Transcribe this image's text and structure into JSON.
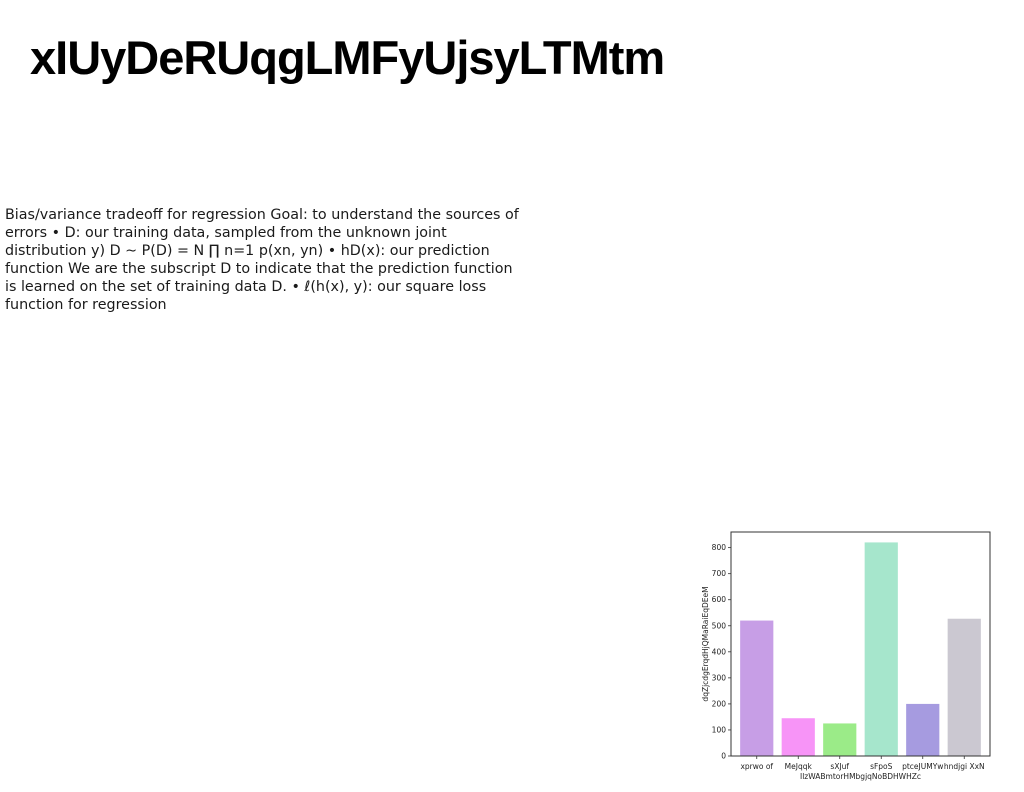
{
  "slide": {
    "title": "xIUyDeRUqgLMFyUjsyLTMtm",
    "body": "Bias/variance tradeoff for regression Goal: to understand the sources of errors • D: our training data, sampled from the unknown joint distribution y) D ∼ P(D) = N ∏ n=1 p(xn, yn) • hD(x): our prediction function We are the subscript D to indicate that the prediction function is learned on the set of training data D. • ℓ(h(x), y): our square loss function for regression"
  },
  "chart_data": {
    "type": "bar",
    "categories": [
      "xprwo of",
      "MeJqqk",
      "sXJuf",
      "sFpoS",
      "ptceJUMYw",
      "hndjgi XxN"
    ],
    "values": [
      520,
      145,
      125,
      820,
      200,
      527
    ],
    "colors": [
      "#c79ee6",
      "#f794f7",
      "#9beb88",
      "#a6e6cc",
      "#a69be0",
      "#cbc8d1"
    ],
    "xlabel": "IlzWABmtorHMbgjqNoBDHWHZc",
    "ylabel": "dqZjcdgErqdHjQMaRaiEqDEeM",
    "ylim": [
      0,
      860
    ],
    "yticks": [
      0,
      100,
      200,
      300,
      400,
      500,
      600,
      700,
      800
    ],
    "grid": false
  }
}
